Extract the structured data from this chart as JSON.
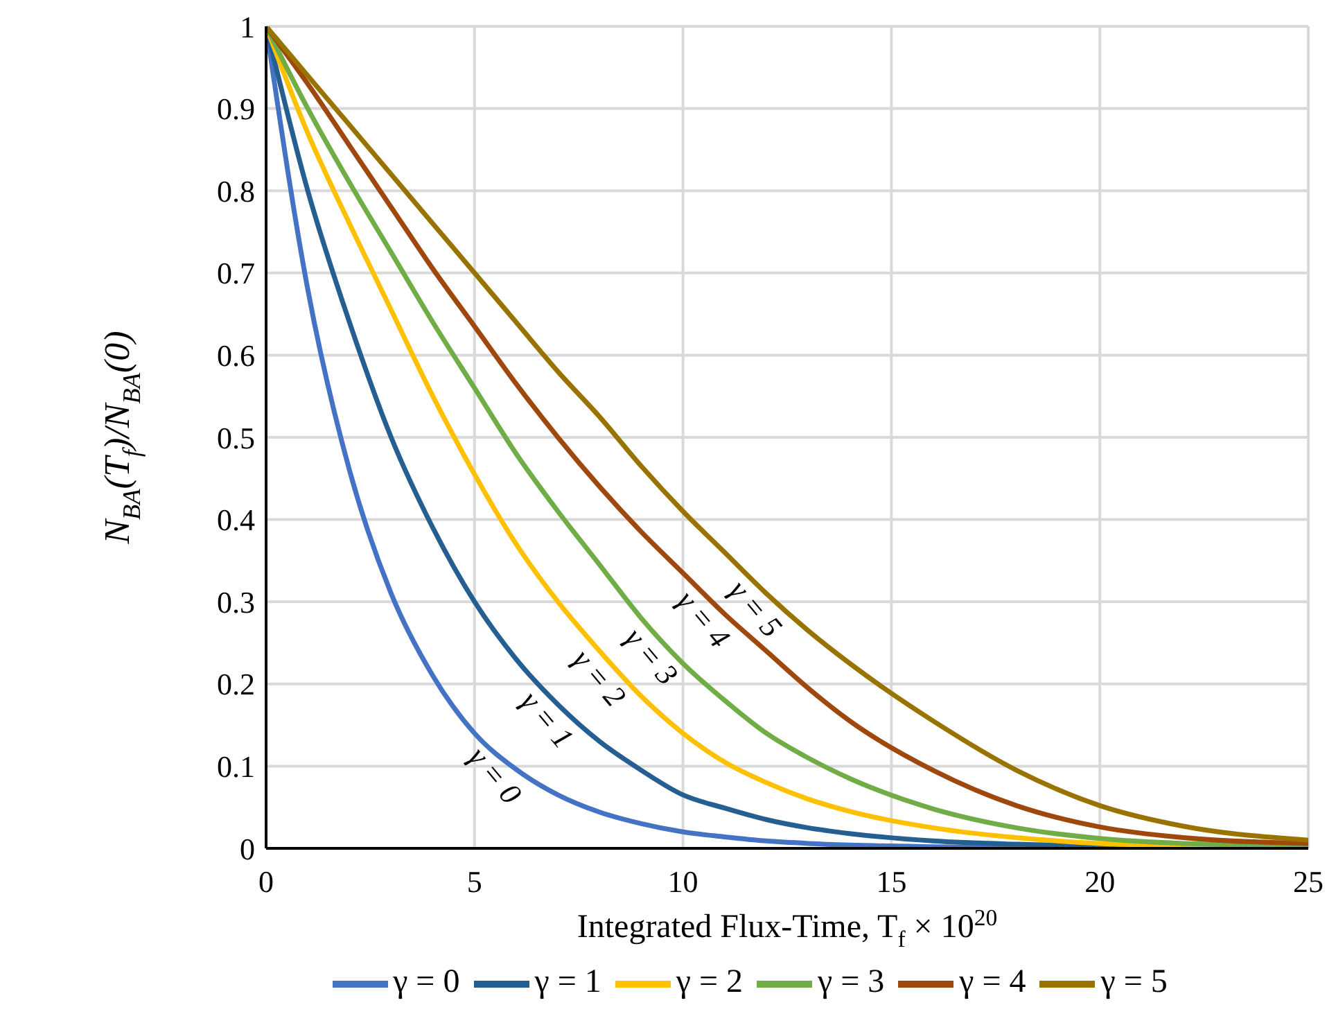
{
  "chart_data": {
    "type": "line",
    "xlabel": "Integrated Flux-Time, T$_{f}$ × 10$^{20}$",
    "ylabel": "N$_{BA}$(T$_{f}$)/N$_{BA}$(0)",
    "x": [
      0,
      1,
      2,
      3,
      4,
      5,
      6,
      7,
      8,
      9,
      10,
      11,
      12,
      13,
      14,
      16,
      18,
      20,
      22,
      25
    ],
    "xlim": [
      0,
      25
    ],
    "xticks": [
      0,
      5,
      10,
      15,
      20,
      25
    ],
    "ylim": [
      0,
      1
    ],
    "yticks": [
      0,
      0.1,
      0.2,
      0.3,
      0.4,
      0.5,
      0.6,
      0.7,
      0.8,
      0.9,
      1
    ],
    "grid": true,
    "legend": "bottom",
    "marker": "none",
    "line_style": "solid",
    "series": [
      {
        "name": "γ = 0",
        "color": "#4472c4",
        "values": [
          1,
          0.68,
          0.46,
          0.31,
          0.21,
          0.14,
          0.096,
          0.065,
          0.044,
          0.03,
          0.02,
          0.014,
          0.009,
          0.006,
          0.004,
          0.002,
          0.001,
          0.001,
          null,
          null
        ]
      },
      {
        "name": "γ = 1",
        "color": "#255e91",
        "values": [
          1,
          0.8,
          0.64,
          0.5,
          0.39,
          0.3,
          0.23,
          0.175,
          0.13,
          0.095,
          0.065,
          0.049,
          0.035,
          0.025,
          0.018,
          0.009,
          0.005,
          0.003,
          0.002,
          0.001
        ]
      },
      {
        "name": "γ = 2",
        "color": "#ffc000",
        "values": [
          1,
          0.87,
          0.76,
          0.655,
          0.55,
          0.455,
          0.37,
          0.3,
          0.24,
          0.185,
          0.14,
          0.105,
          0.08,
          0.06,
          0.045,
          0.025,
          0.013,
          0.006,
          0.003,
          0.001
        ]
      },
      {
        "name": "γ = 3",
        "color": "#70ad47",
        "values": [
          1,
          0.9,
          0.81,
          0.725,
          0.64,
          0.56,
          0.48,
          0.41,
          0.345,
          0.28,
          0.225,
          0.18,
          0.14,
          0.11,
          0.085,
          0.048,
          0.025,
          0.012,
          0.006,
          0.003
        ]
      },
      {
        "name": "γ = 4",
        "color": "#9e480e",
        "values": [
          1,
          0.93,
          0.855,
          0.78,
          0.705,
          0.635,
          0.565,
          0.5,
          0.44,
          0.385,
          0.335,
          0.285,
          0.24,
          0.195,
          0.155,
          0.095,
          0.052,
          0.026,
          0.013,
          0.006
        ]
      },
      {
        "name": "γ = 5",
        "color": "#997300",
        "values": [
          1,
          0.94,
          0.88,
          0.82,
          0.76,
          0.7,
          0.64,
          0.58,
          0.525,
          0.465,
          0.41,
          0.36,
          0.31,
          0.265,
          0.225,
          0.155,
          0.095,
          0.052,
          0.027,
          0.01
        ]
      }
    ],
    "annotations": [
      "γ = 0",
      "γ = 1",
      "γ = 2",
      "γ = 3",
      "γ = 4",
      "γ = 5"
    ]
  }
}
